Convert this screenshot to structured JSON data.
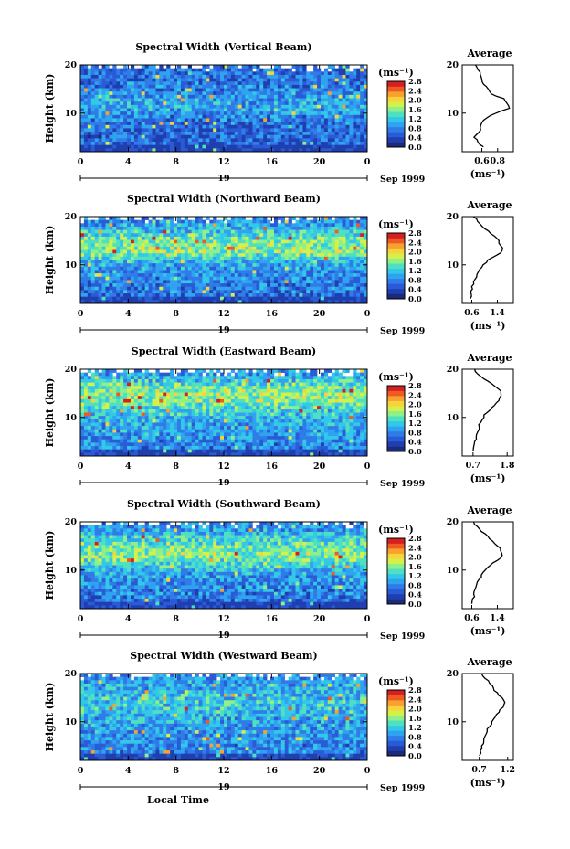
{
  "figure": {
    "xlabel": "Local Time",
    "date_label": "Sep 1999",
    "day_label": "19",
    "ylabel": "Height (km)",
    "unit_label": "(ms⁻¹)",
    "colorbar_ticks": [
      "0.0",
      "0.4",
      "0.8",
      "1.2",
      "1.6",
      "2.0",
      "2.4",
      "2.8"
    ],
    "colormap": [
      "#1b2a7a",
      "#1f3fb0",
      "#2a5bd6",
      "#2f7be8",
      "#2fa3f0",
      "#32c8e8",
      "#4fe0c0",
      "#8ef08a",
      "#d6f04a",
      "#f8d23a",
      "#f7a12f",
      "#ee5a23",
      "#d61f1f"
    ],
    "x_ticks": [
      "0",
      "4",
      "8",
      "12",
      "16",
      "20",
      "0"
    ],
    "y_ticks": [
      "20",
      "10"
    ]
  },
  "chart_data": [
    {
      "type": "heatmap",
      "title": "Spectral Width (Vertical Beam)",
      "xlabel": "Local Time",
      "ylabel": "Height (km)",
      "x_range": [
        0,
        24
      ],
      "y_range": [
        2,
        20
      ],
      "colorbar_range": [
        0.0,
        2.8
      ],
      "description_levels": {
        "background": 0.5,
        "high_band_km": null
      },
      "profile": {
        "title": "Average",
        "xlabel": "(ms⁻¹)",
        "x_ticks": [
          "0.6",
          "0.8"
        ],
        "x_range": [
          0.35,
          1.0
        ],
        "y_ticks": [
          "20",
          "10"
        ],
        "heights": [
          3,
          4,
          5,
          6,
          7,
          8,
          9,
          10,
          11,
          12,
          13,
          14,
          15,
          16,
          17,
          18,
          19,
          20
        ],
        "values": [
          0.62,
          0.55,
          0.5,
          0.56,
          0.58,
          0.6,
          0.66,
          0.78,
          0.95,
          0.92,
          0.88,
          0.72,
          0.68,
          0.62,
          0.6,
          0.58,
          0.55,
          0.52
        ]
      }
    },
    {
      "type": "heatmap",
      "title": "Spectral Width (Northward Beam)",
      "xlabel": "Local Time",
      "ylabel": "Height (km)",
      "x_range": [
        0,
        24
      ],
      "y_range": [
        2,
        20
      ],
      "colorbar_range": [
        0.0,
        2.8
      ],
      "profile": {
        "title": "Average",
        "xlabel": "(ms⁻¹)",
        "x_ticks": [
          "0.6",
          "1.4"
        ],
        "x_range": [
          0.3,
          1.9
        ],
        "y_ticks": [
          "20",
          "10"
        ],
        "heights": [
          3,
          4,
          5,
          6,
          7,
          8,
          9,
          10,
          11,
          12,
          13,
          14,
          15,
          16,
          17,
          18,
          19,
          20
        ],
        "values": [
          0.55,
          0.58,
          0.62,
          0.66,
          0.7,
          0.76,
          0.84,
          0.95,
          1.1,
          1.38,
          1.55,
          1.5,
          1.45,
          1.3,
          1.12,
          0.92,
          0.78,
          0.65
        ]
      }
    },
    {
      "type": "heatmap",
      "title": "Spectral Width (Eastward Beam)",
      "xlabel": "Local Time",
      "ylabel": "Height (km)",
      "x_range": [
        0,
        24
      ],
      "y_range": [
        2,
        20
      ],
      "colorbar_range": [
        0.0,
        2.8
      ],
      "profile": {
        "title": "Average",
        "xlabel": "(ms⁻¹)",
        "x_ticks": [
          "0.7",
          "1.8"
        ],
        "x_range": [
          0.35,
          2.0
        ],
        "y_ticks": [
          "20",
          "10"
        ],
        "heights": [
          3,
          4,
          5,
          6,
          7,
          8,
          9,
          10,
          11,
          12,
          13,
          14,
          15,
          16,
          17,
          18,
          19,
          20
        ],
        "values": [
          0.7,
          0.72,
          0.75,
          0.8,
          0.85,
          0.9,
          0.95,
          1.05,
          1.15,
          1.3,
          1.45,
          1.55,
          1.6,
          1.5,
          1.3,
          1.05,
          0.85,
          0.75
        ]
      }
    },
    {
      "type": "heatmap",
      "title": "Spectral Width (Southward Beam)",
      "xlabel": "Local Time",
      "ylabel": "Height (km)",
      "x_range": [
        0,
        24
      ],
      "y_range": [
        2,
        20
      ],
      "colorbar_range": [
        0.0,
        2.8
      ],
      "profile": {
        "title": "Average",
        "xlabel": "(ms⁻¹)",
        "x_ticks": [
          "0.6",
          "1.4"
        ],
        "x_range": [
          0.3,
          1.9
        ],
        "y_ticks": [
          "20",
          "10"
        ],
        "heights": [
          3,
          4,
          5,
          6,
          7,
          8,
          9,
          10,
          11,
          12,
          13,
          14,
          15,
          16,
          17,
          18,
          19,
          20
        ],
        "values": [
          0.6,
          0.62,
          0.66,
          0.7,
          0.75,
          0.82,
          0.9,
          1.02,
          1.18,
          1.4,
          1.55,
          1.5,
          1.4,
          1.25,
          1.1,
          0.9,
          0.78,
          0.66
        ]
      }
    },
    {
      "type": "heatmap",
      "title": "Spectral Width (Westward Beam)",
      "xlabel": "Local Time",
      "ylabel": "Height (km)",
      "x_range": [
        0,
        24
      ],
      "y_range": [
        2,
        20
      ],
      "colorbar_range": [
        0.0,
        2.8
      ],
      "profile": {
        "title": "Average",
        "xlabel": "(ms⁻¹)",
        "x_ticks": [
          "0.7",
          "1.2"
        ],
        "x_range": [
          0.4,
          1.3
        ],
        "y_ticks": [
          "20",
          "10"
        ],
        "heights": [
          3,
          4,
          5,
          6,
          7,
          8,
          9,
          10,
          11,
          12,
          13,
          14,
          15,
          16,
          17,
          18,
          19,
          20
        ],
        "values": [
          0.7,
          0.72,
          0.74,
          0.78,
          0.8,
          0.84,
          0.88,
          0.92,
          0.98,
          1.05,
          1.12,
          1.15,
          1.1,
          1.02,
          0.95,
          0.88,
          0.8,
          0.74
        ]
      }
    }
  ]
}
